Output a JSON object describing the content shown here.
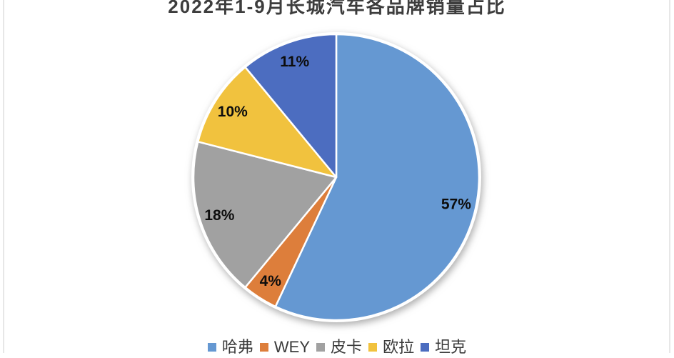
{
  "page": {
    "background": "#ffffff",
    "edge_line_color": "#e7e7e7"
  },
  "chart_data": {
    "type": "pie",
    "title": "2022年1-9月长城汽车各品牌销量占比",
    "categories": [
      "哈弗",
      "WEY",
      "皮卡",
      "欧拉",
      "坦克"
    ],
    "ids": [
      "haval",
      "wey",
      "pickup",
      "ora",
      "tank"
    ],
    "values": [
      57,
      4,
      18,
      10,
      11
    ],
    "labels": [
      "57%",
      "4%",
      "18%",
      "10%",
      "11%"
    ],
    "colors": [
      "#6598d2",
      "#dd7e3b",
      "#a1a1a1",
      "#f1c23e",
      "#4c6dc0"
    ],
    "slice_border_color": "#ffffff",
    "label_color": "#0d0d0d",
    "title_color": "#3d3d3d",
    "legend_text_color": "#3a3a3a",
    "start_angle_deg": 0,
    "direction": "clockwise",
    "legend_position": "bottom"
  }
}
